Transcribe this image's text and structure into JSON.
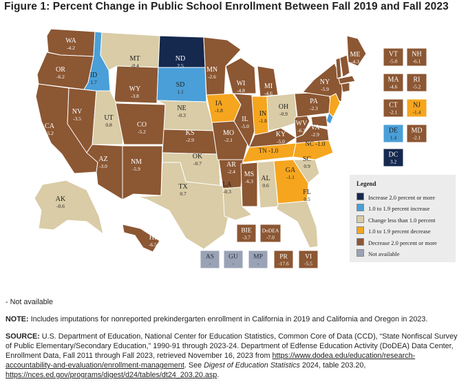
{
  "title": "Figure 1: Percent Change in Public School Enrollment Between Fall 2019 and Fall 2023",
  "colors": {
    "increase_2plus": "#15284e",
    "increase_1to19": "#4a9fd8",
    "change_less1": "#d9cca6",
    "decrease_1to19": "#f5a51e",
    "decrease_2plus": "#8c5733",
    "not_available": "#9aa3b5"
  },
  "states": [
    {
      "abbr": "WA",
      "value": "-4.2",
      "cat": "decrease_2plus"
    },
    {
      "abbr": "OR",
      "value": "-6.2",
      "cat": "decrease_2plus"
    },
    {
      "abbr": "CA",
      "value": "-5.2",
      "cat": "decrease_2plus"
    },
    {
      "abbr": "NV",
      "value": "-3.5",
      "cat": "decrease_2plus"
    },
    {
      "abbr": "ID",
      "value": "1.7",
      "cat": "increase_1to19"
    },
    {
      "abbr": "MT",
      "value": "-0.4",
      "cat": "change_less1"
    },
    {
      "abbr": "WY",
      "value": "-3.8",
      "cat": "decrease_2plus"
    },
    {
      "abbr": "UT",
      "value": "0.8",
      "cat": "change_less1"
    },
    {
      "abbr": "AZ",
      "value": "-3.0",
      "cat": "decrease_2plus"
    },
    {
      "abbr": "CO",
      "value": "-5.2",
      "cat": "decrease_2plus"
    },
    {
      "abbr": "NM",
      "value": "-5.9",
      "cat": "decrease_2plus"
    },
    {
      "abbr": "ND",
      "value": "2.5",
      "cat": "increase_2plus"
    },
    {
      "abbr": "SD",
      "value": "1.1",
      "cat": "increase_1to19"
    },
    {
      "abbr": "NE",
      "value": "-0.3",
      "cat": "change_less1"
    },
    {
      "abbr": "KS",
      "value": "-2.9",
      "cat": "decrease_2plus"
    },
    {
      "abbr": "OK",
      "value": "-0.7",
      "cat": "change_less1"
    },
    {
      "abbr": "TX",
      "value": "0.7",
      "cat": "change_less1"
    },
    {
      "abbr": "MN",
      "value": "-2.6",
      "cat": "decrease_2plus"
    },
    {
      "abbr": "IA",
      "value": "-1.8",
      "cat": "decrease_1to19"
    },
    {
      "abbr": "MO",
      "value": "-2.1",
      "cat": "decrease_2plus"
    },
    {
      "abbr": "AR",
      "value": "-2.4",
      "cat": "decrease_2plus"
    },
    {
      "abbr": "LA",
      "value": "-0.3",
      "cat": "change_less1"
    },
    {
      "abbr": "WI",
      "value": "-4.8",
      "cat": "decrease_2plus"
    },
    {
      "abbr": "IL",
      "value": "-5.0",
      "cat": "decrease_2plus"
    },
    {
      "abbr": "MS",
      "value": "-6.3",
      "cat": "decrease_2plus"
    },
    {
      "abbr": "MI",
      "value": "-4.6",
      "cat": "decrease_2plus"
    },
    {
      "abbr": "IN",
      "value": "-1.8",
      "cat": "decrease_1to19"
    },
    {
      "abbr": "KY",
      "value": "-5.0",
      "cat": "decrease_2plus"
    },
    {
      "abbr": "TN",
      "value": "-1.0",
      "cat": "decrease_1to19"
    },
    {
      "abbr": "AL",
      "value": "0.6",
      "cat": "change_less1"
    },
    {
      "abbr": "OH",
      "value": "-0.9",
      "cat": "change_less1"
    },
    {
      "abbr": "WV",
      "value": "-6.3",
      "cat": "decrease_2plus"
    },
    {
      "abbr": "GA",
      "value": "-1.1",
      "cat": "decrease_1to19"
    },
    {
      "abbr": "FL",
      "value": "0.5",
      "cat": "change_less1"
    },
    {
      "abbr": "SC",
      "value": "0.9",
      "cat": "change_less1"
    },
    {
      "abbr": "NC",
      "value": "-1.0",
      "cat": "decrease_1to19"
    },
    {
      "abbr": "VA",
      "value": "-2.9",
      "cat": "decrease_2plus"
    },
    {
      "abbr": "PA",
      "value": "-2.3",
      "cat": "decrease_2plus"
    },
    {
      "abbr": "NY",
      "value": "-5.9",
      "cat": "decrease_2plus"
    },
    {
      "abbr": "ME",
      "value": "-4.3",
      "cat": "decrease_2plus"
    },
    {
      "abbr": "AK",
      "value": "-0.6",
      "cat": "change_less1"
    },
    {
      "abbr": "HI",
      "value": "-6.5",
      "cat": "decrease_2plus"
    }
  ],
  "boxes": [
    {
      "abbr": "VT",
      "value": "-5.0",
      "cat": "decrease_2plus"
    },
    {
      "abbr": "NH",
      "value": "-6.1",
      "cat": "decrease_2plus"
    },
    {
      "abbr": "MA",
      "value": "-4.6",
      "cat": "decrease_2plus"
    },
    {
      "abbr": "RI",
      "value": "-5.2",
      "cat": "decrease_2plus"
    },
    {
      "abbr": "CT",
      "value": "-2.1",
      "cat": "decrease_2plus"
    },
    {
      "abbr": "NJ",
      "value": "-1.4",
      "cat": "decrease_1to19"
    },
    {
      "abbr": "DE",
      "value": "1.4",
      "cat": "increase_1to19"
    },
    {
      "abbr": "MD",
      "value": "-2.1",
      "cat": "decrease_2plus"
    },
    {
      "abbr": "DC",
      "value": "3.2",
      "cat": "increase_2plus"
    }
  ],
  "territories": [
    {
      "abbr": "BIE",
      "value": "-3.7",
      "cat": "decrease_2plus"
    },
    {
      "abbr": "DoDEA",
      "value": "-7.0",
      "cat": "decrease_2plus"
    },
    {
      "abbr": "AS",
      "value": "-",
      "cat": "not_available"
    },
    {
      "abbr": "GU",
      "value": "-",
      "cat": "not_available"
    },
    {
      "abbr": "MP",
      "value": "-",
      "cat": "not_available"
    },
    {
      "abbr": "PR",
      "value": "-17.6",
      "cat": "decrease_2plus"
    },
    {
      "abbr": "VI",
      "value": "-5.5",
      "cat": "decrease_2plus"
    }
  ],
  "legend": {
    "title": "Legend",
    "items": [
      {
        "label": "Increase 2.0 percent or more",
        "cat": "increase_2plus"
      },
      {
        "label": "1.0 to 1.9 percent increase",
        "cat": "increase_1to19"
      },
      {
        "label": "Change less than 1.0 percent",
        "cat": "change_less1"
      },
      {
        "label": "1.0 to 1.9 percent decrease",
        "cat": "decrease_1to19"
      },
      {
        "label": "Decrease 2.0 percent or more",
        "cat": "decrease_2plus"
      },
      {
        "label": "Not available",
        "cat": "not_available"
      }
    ]
  },
  "notes": {
    "not_available": "- Not available",
    "note_label": "NOTE:",
    "note_text": " Includes imputations for nonreported prekindergarten enrollment in California in 2019 and California and Oregon in 2023.",
    "source_label": "SOURCE:",
    "source_text": " U.S. Department of Education, National Center for Education Statistics, Common Core of Data (CCD), “State Nonfiscal Survey of Public Elementary/Secondary Education,” 1990-91 through 2023-24. Department of Edfense Education Activity (DoDEA) Data Center, Enrollment Data, Fall 2011 through Fall 2023, retrieved November 16, 2023 from ",
    "source_link1": "https://www.dodea.edu/education/research-accountability-and-evaluation/enrollment-management",
    "source_mid": ". See ",
    "source_italic": "Digest of Education Statistics",
    "source_end": " 2024, table 203.20, ",
    "source_link2": "https://nces.ed.gov/programs/digest/d24/tables/dt24_203.20.asp",
    "source_final": "."
  }
}
